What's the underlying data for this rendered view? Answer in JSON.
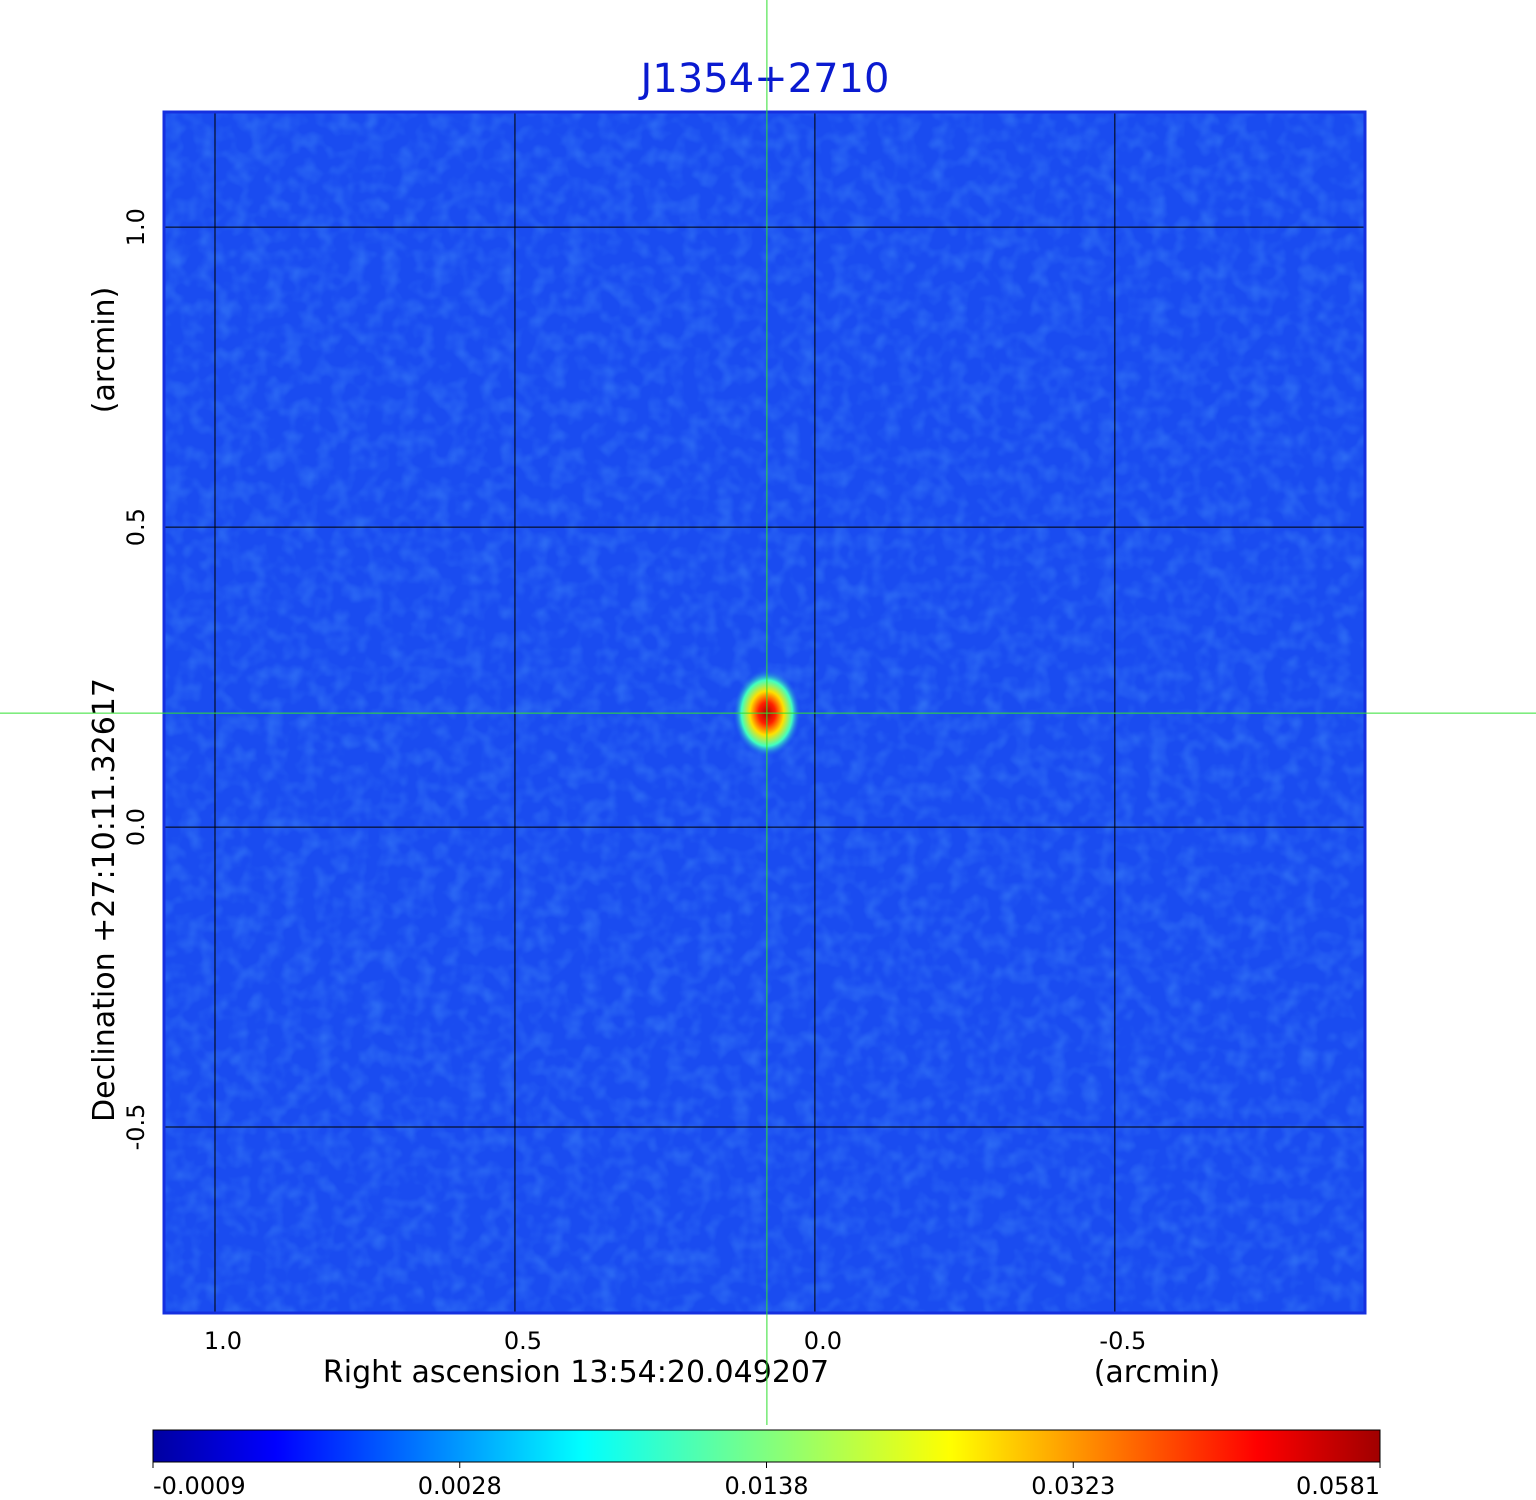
{
  "chart_data": {
    "type": "image",
    "title": "J1354+2710",
    "xlabel": "Right ascension  13:54:20.049207",
    "xunit": "(arcmin)",
    "ylabel": "Declination  +27:10:11.32617",
    "yunit": "(arcmin)",
    "xlim": [
      1.085,
      -0.917
    ],
    "ylim": [
      -0.81,
      1.192
    ],
    "xticks": [
      {
        "value": 1,
        "label": "1.0"
      },
      0.5,
      {
        "value": 0,
        "label": "0.0"
      },
      -0.5
    ],
    "yticks": [
      -0.5,
      {
        "value": 0,
        "label": "0.0"
      },
      0.5,
      {
        "value": 1,
        "label": "1.0"
      }
    ],
    "grid": true,
    "crosshair": {
      "x": 0.08,
      "y": 0.19
    },
    "colorbar": {
      "colormap": "jet",
      "ticks": [
        -0.0009,
        0.0028,
        0.0138,
        0.0323,
        0.0581
      ]
    }
  }
}
